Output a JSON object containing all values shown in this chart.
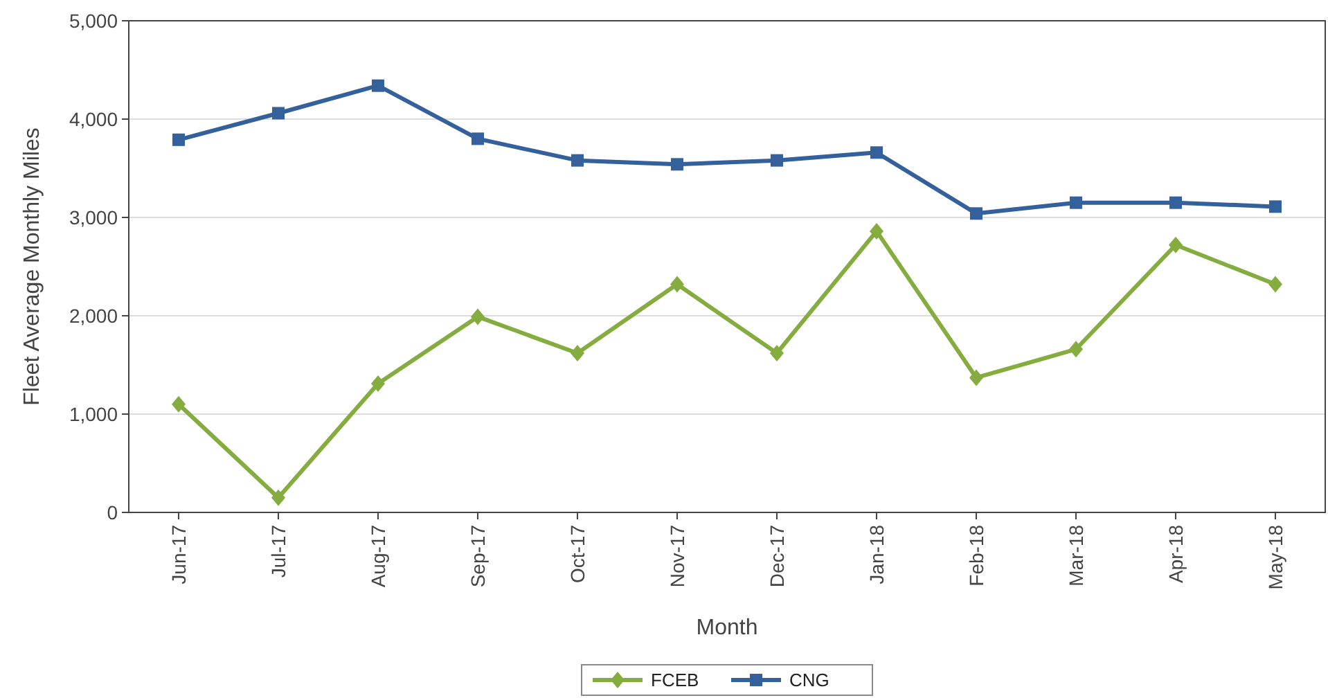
{
  "chart_data": {
    "type": "line",
    "xlabel": "Month",
    "ylabel": "Fleet Average Monthly Miles",
    "categories": [
      "Jun-17",
      "Jul-17",
      "Aug-17",
      "Sep-17",
      "Oct-17",
      "Nov-17",
      "Dec-17",
      "Jan-18",
      "Feb-18",
      "Mar-18",
      "Apr-18",
      "May-18"
    ],
    "series": [
      {
        "name": "FCEB",
        "color": "#84ac3f",
        "marker": "diamond",
        "values": [
          1100,
          150,
          1310,
          1990,
          1620,
          2320,
          1620,
          2860,
          1370,
          1660,
          2720,
          2320
        ]
      },
      {
        "name": "CNG",
        "color": "#34609c",
        "marker": "square",
        "values": [
          3790,
          4060,
          4340,
          3800,
          3580,
          3540,
          3580,
          3660,
          3040,
          3150,
          3150,
          3110
        ]
      }
    ],
    "ylim": [
      0,
      5000
    ],
    "yticks": [
      {
        "value": 0,
        "label": "0"
      },
      {
        "value": 1000,
        "label": "1,000"
      },
      {
        "value": 2000,
        "label": "2,000"
      },
      {
        "value": 3000,
        "label": "3,000"
      },
      {
        "value": 4000,
        "label": "4,000"
      },
      {
        "value": 5000,
        "label": "5,000"
      }
    ],
    "grid": "y",
    "legend": "bottom",
    "line_style": "solid"
  }
}
